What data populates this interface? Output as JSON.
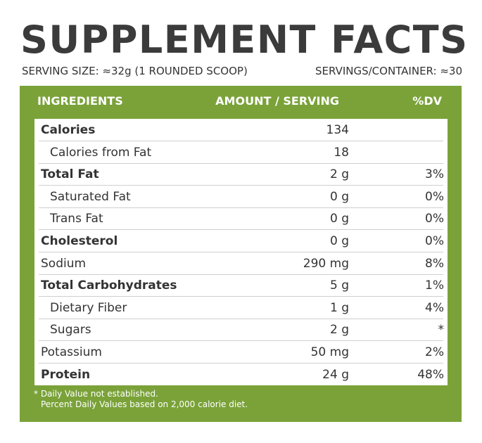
{
  "title": "SUPPLEMENT FACTS",
  "serving_size": "SERVING SIZE: ≈32g (1 ROUNDED SCOOP)",
  "servings_per_container": "SERVINGS/CONTAINER: ≈30",
  "colors": {
    "panel_green": "#7aa239",
    "title_gray": "#3b3b3b"
  },
  "header": {
    "ingredients": "INGREDIENTS",
    "amount": "AMOUNT / SERVING",
    "dv": "%DV"
  },
  "rows": [
    {
      "name": "Calories",
      "amount": "134",
      "dv": "",
      "bold": true,
      "indent": false
    },
    {
      "name": "Calories from Fat",
      "amount": "18",
      "dv": "",
      "bold": false,
      "indent": true
    },
    {
      "name": "Total Fat",
      "amount": "2 g",
      "dv": "3%",
      "bold": true,
      "indent": false
    },
    {
      "name": "Saturated Fat",
      "amount": "0 g",
      "dv": "0%",
      "bold": false,
      "indent": true
    },
    {
      "name": "Trans Fat",
      "amount": "0 g",
      "dv": "0%",
      "bold": false,
      "indent": true
    },
    {
      "name": "Cholesterol",
      "amount": "0 g",
      "dv": "0%",
      "bold": true,
      "indent": false
    },
    {
      "name": "Sodium",
      "amount": "290 mg",
      "dv": "8%",
      "bold": false,
      "indent": false
    },
    {
      "name": "Total Carbohydrates",
      "amount": "5 g",
      "dv": "1%",
      "bold": true,
      "indent": false
    },
    {
      "name": "Dietary Fiber",
      "amount": "1 g",
      "dv": "4%",
      "bold": false,
      "indent": true
    },
    {
      "name": "Sugars",
      "amount": "2 g",
      "dv": "*",
      "bold": false,
      "indent": true
    },
    {
      "name": "Potassium",
      "amount": "50 mg",
      "dv": "2%",
      "bold": false,
      "indent": false
    },
    {
      "name": "Protein",
      "amount": "24 g",
      "dv": "48%",
      "bold": true,
      "indent": false
    }
  ],
  "footnote": {
    "line1": "* Daily Value not established.",
    "line2": "Percent Daily Values based on 2,000 calorie diet."
  }
}
